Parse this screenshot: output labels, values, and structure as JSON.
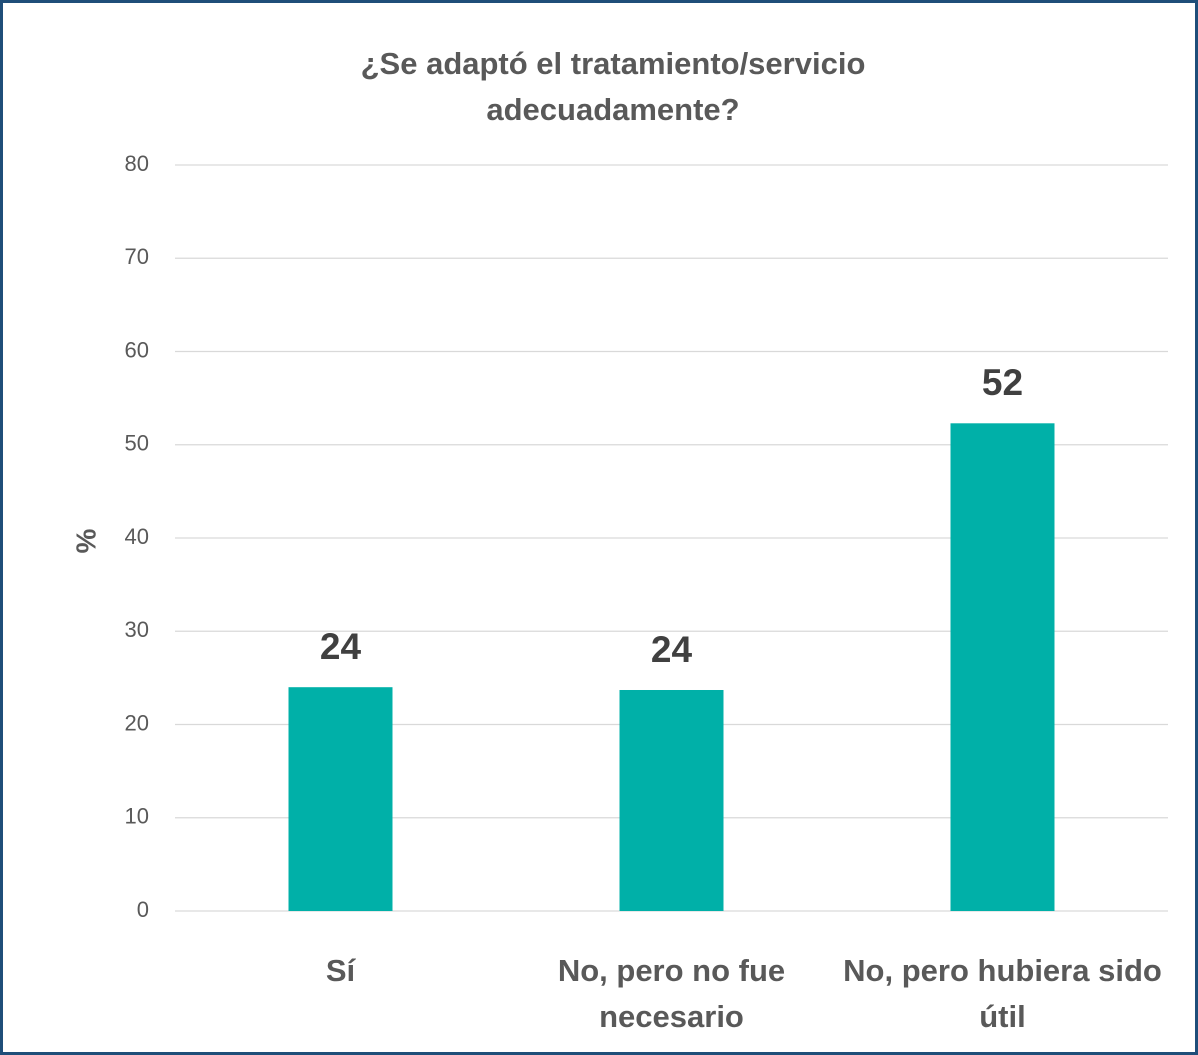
{
  "chart_data": {
    "type": "bar",
    "title": "¿Se adaptó el tratamiento/servicio adecuadamente?",
    "y_label": "%",
    "categories": [
      "Sí",
      "No, pero no fue necesario",
      "No, pero hubiera sido útil"
    ],
    "values": [
      24.0,
      23.7,
      52.3
    ],
    "value_labels": [
      "24",
      "24",
      "52"
    ],
    "color": "#00b0a8",
    "ylim": [
      0,
      80
    ],
    "yticks": [
      0,
      10,
      20,
      30,
      40,
      50,
      60,
      70,
      80
    ],
    "grid": true
  }
}
